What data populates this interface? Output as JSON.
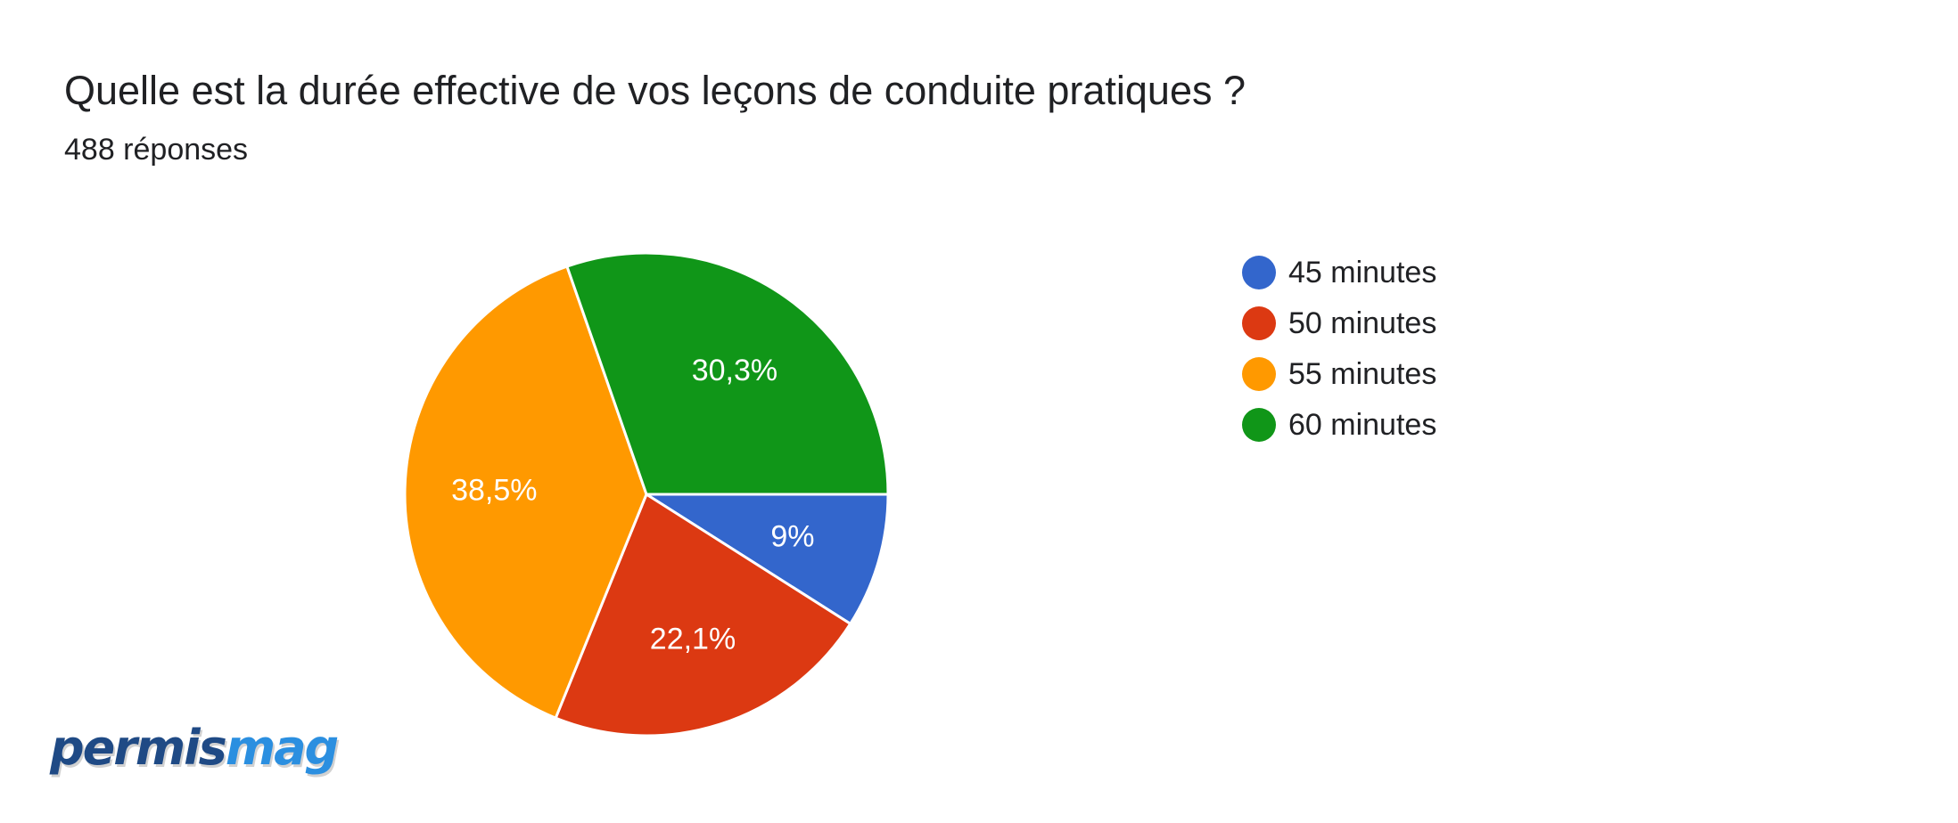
{
  "header": {
    "title": "Quelle est la durée effective de vos leçons de conduite pratiques ?",
    "subtitle": "488 réponses"
  },
  "logo": {
    "part1": "permis",
    "part2": "mag"
  },
  "chart_data": {
    "type": "pie",
    "title": "Quelle est la durée effective de vos leçons de conduite pratiques ?",
    "subtitle": "488 réponses",
    "legend_position": "right",
    "slices": [
      {
        "label": "45 minutes",
        "value": 9.0,
        "value_label": "9%",
        "color": "#3366cc"
      },
      {
        "label": "50 minutes",
        "value": 22.1,
        "value_label": "22,1%",
        "color": "#dc3912"
      },
      {
        "label": "55 minutes",
        "value": 38.5,
        "value_label": "38,5%",
        "color": "#ff9900"
      },
      {
        "label": "60 minutes",
        "value": 30.3,
        "value_label": "30,3%",
        "color": "#109618"
      }
    ]
  }
}
